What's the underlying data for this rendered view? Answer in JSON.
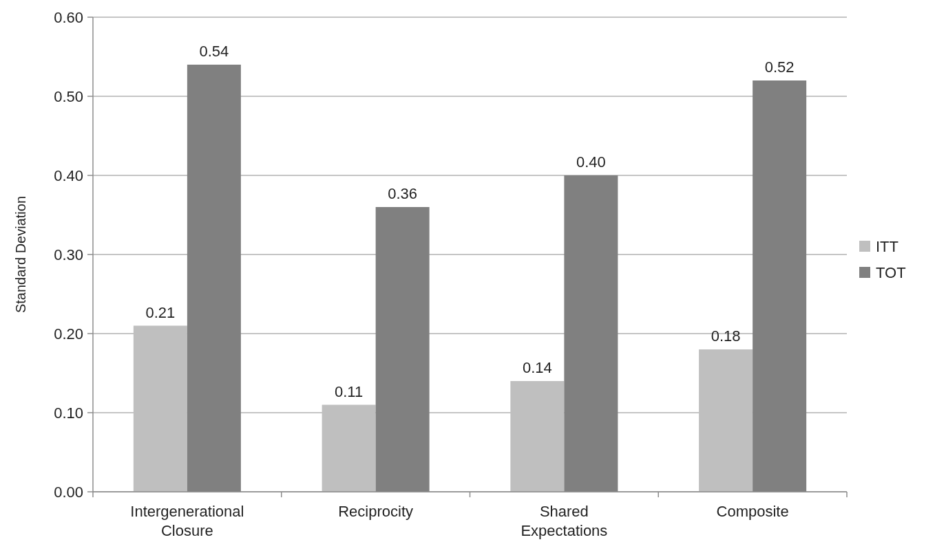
{
  "chart_data": {
    "type": "bar",
    "ylabel": "Standard Deviation",
    "categories": [
      "Intergenerational Closure",
      "Reciprocity",
      "Shared Expectations",
      "Composite"
    ],
    "series": [
      {
        "name": "ITT",
        "color": "#bfbfbf",
        "values": [
          0.21,
          0.11,
          0.14,
          0.18
        ],
        "value_labels": [
          "0.21",
          "0.11",
          "0.14",
          "0.18"
        ]
      },
      {
        "name": "TOT",
        "color": "#808080",
        "values": [
          0.54,
          0.36,
          0.4,
          0.52
        ],
        "value_labels": [
          "0.54",
          "0.36",
          "0.40",
          "0.52"
        ]
      }
    ],
    "ylim": [
      0,
      0.6
    ],
    "yticks": [
      {
        "value": 0,
        "label": "0.00"
      },
      {
        "value": 0.1,
        "label": "0.10"
      },
      {
        "value": 0.2,
        "label": "0.20"
      },
      {
        "value": 0.3,
        "label": "0.30"
      },
      {
        "value": 0.4,
        "label": "0.40"
      },
      {
        "value": 0.5,
        "label": "0.50"
      },
      {
        "value": 0.6,
        "label": "0.60"
      }
    ],
    "grid": "y",
    "legend": "right"
  }
}
